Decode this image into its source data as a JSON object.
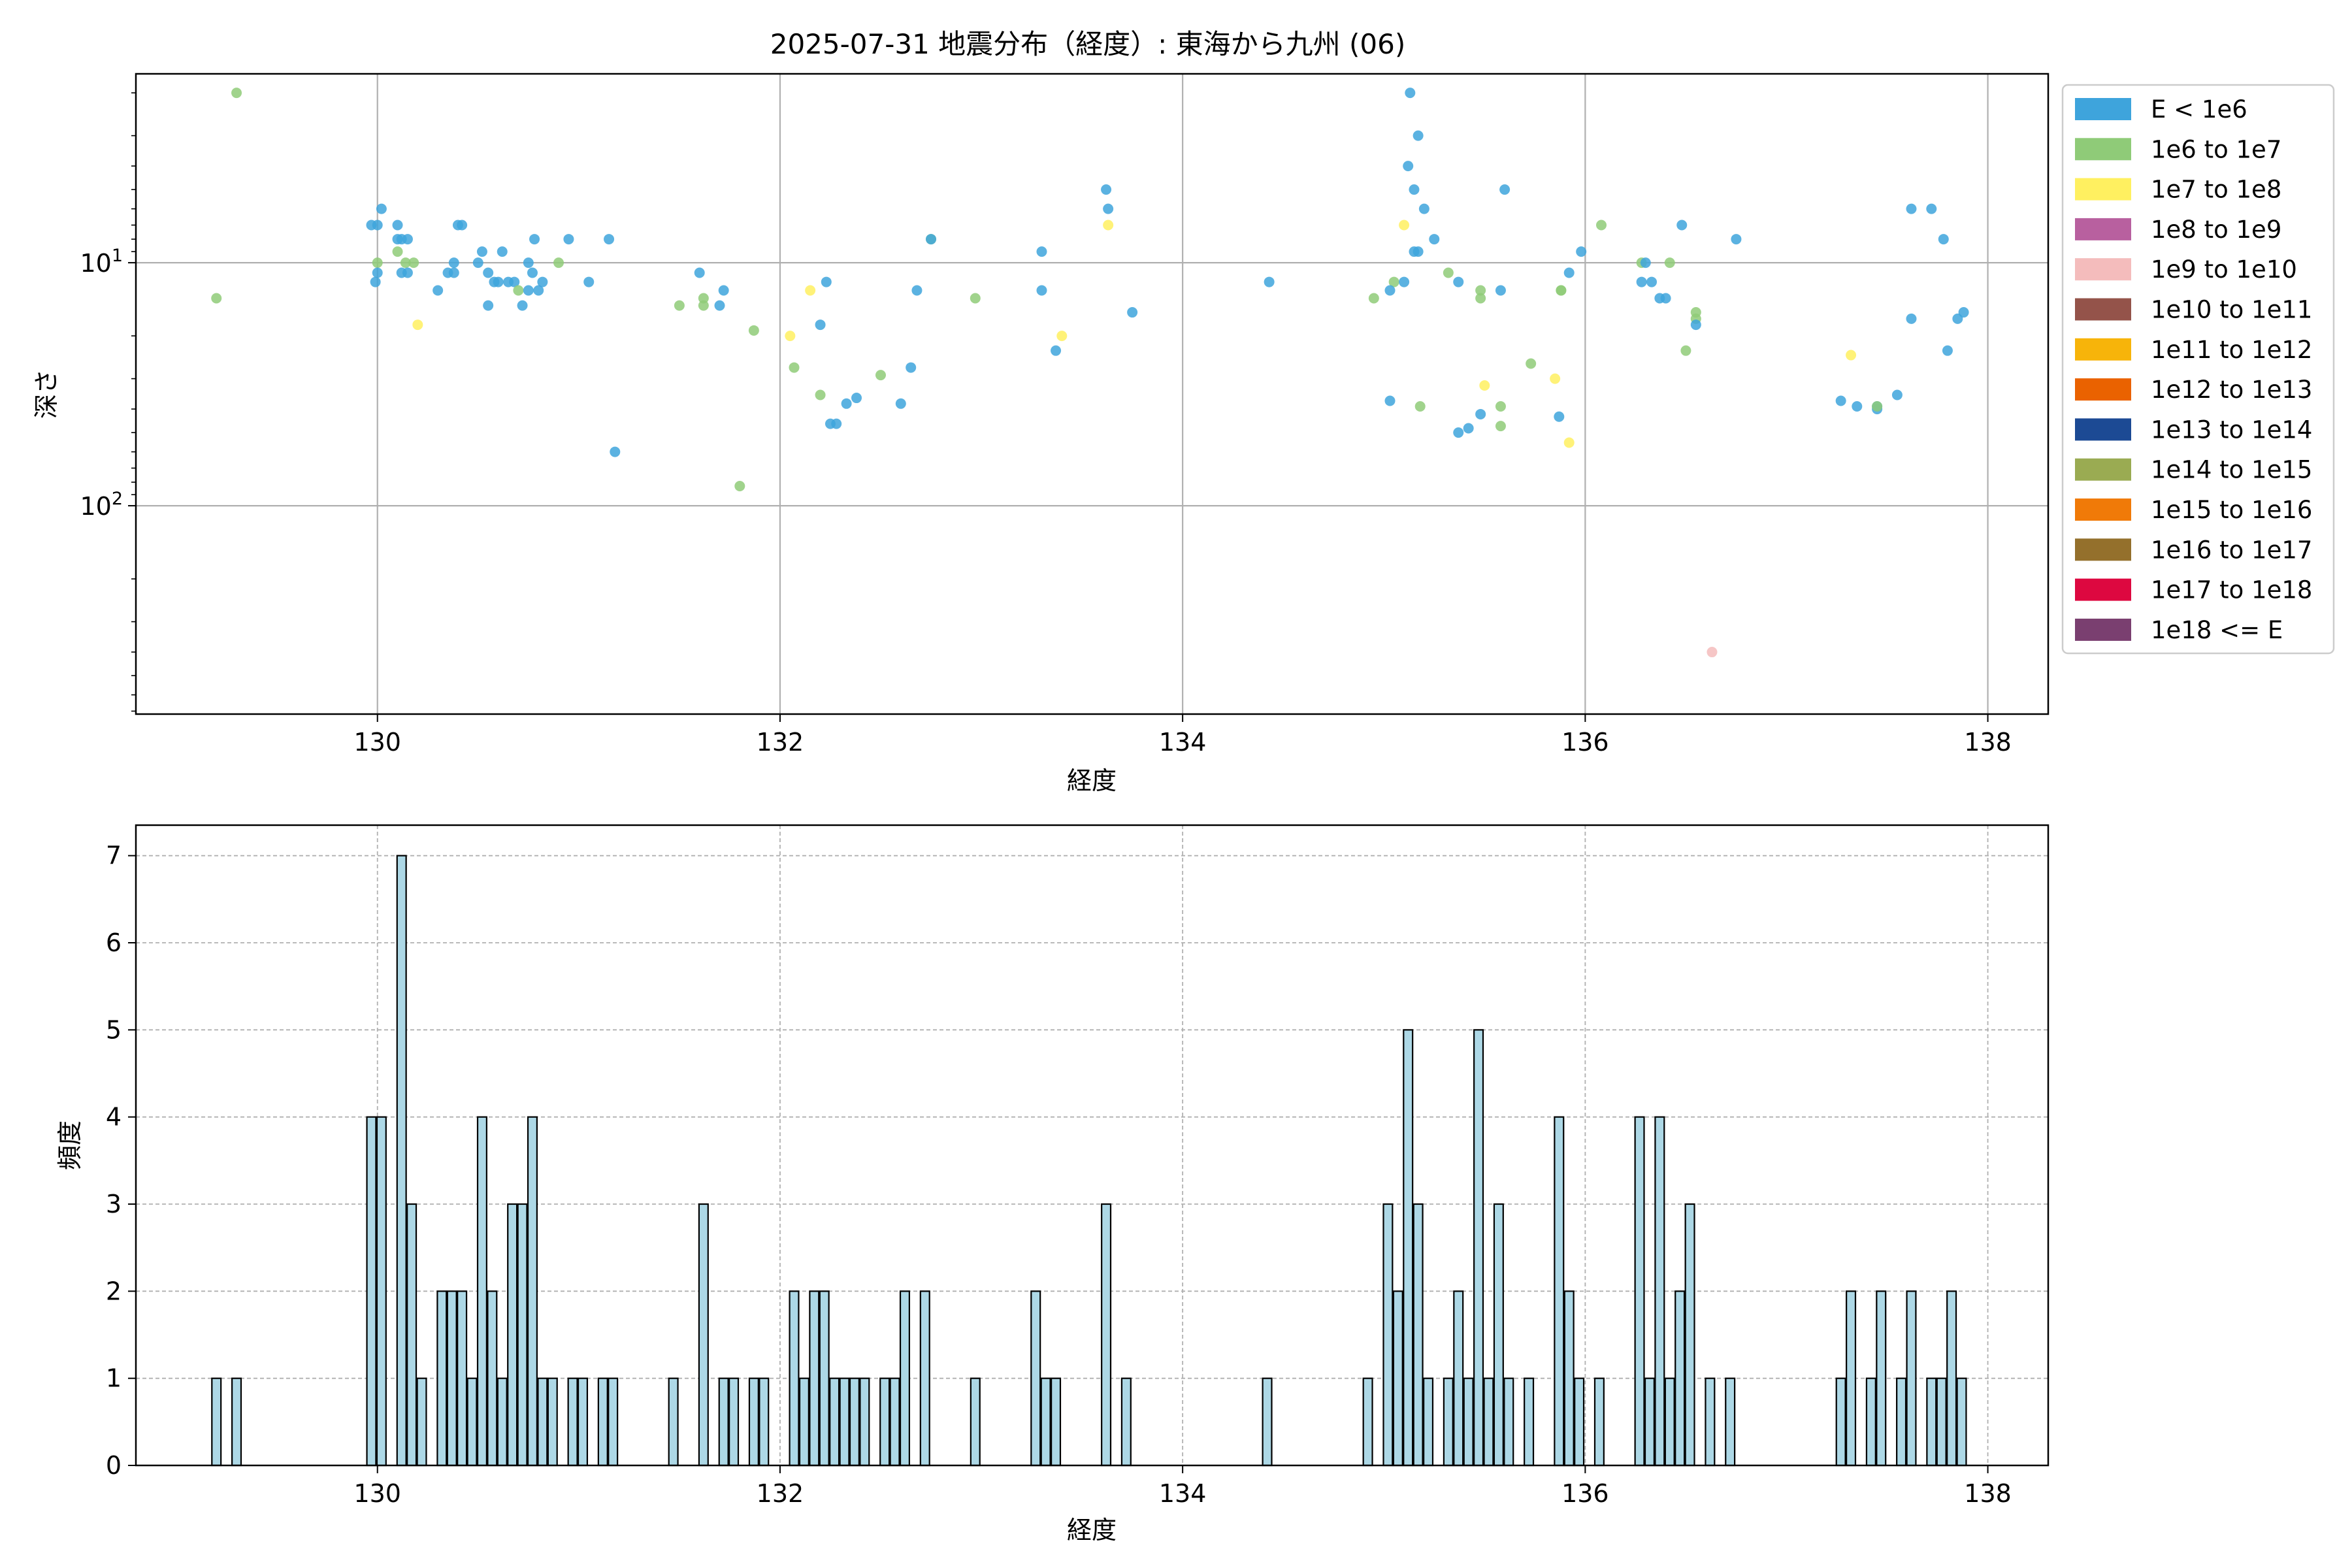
{
  "figure": {
    "title": "2025-07-31 地震分布（経度）: 東海から九州 (06)"
  },
  "chart_data": [
    {
      "type": "scatter",
      "name": "depth-vs-longitude",
      "xlabel": "経度",
      "ylabel": "深さ",
      "xlim": [
        128.8,
        138.3
      ],
      "ylim": [
        720,
        1.67
      ],
      "y_scale": "log",
      "y_inverted": true,
      "grid": true,
      "x_ticks": [
        "130",
        "132",
        "134",
        "136",
        "138"
      ],
      "y_ticks": [
        {
          "base": "10",
          "exp": "1",
          "value": 10
        },
        {
          "base": "10",
          "exp": "2",
          "value": 100
        }
      ],
      "legend": {
        "placement": "outside-right",
        "entries": [
          {
            "label": "E < 1e6",
            "color": "#3ea4dc"
          },
          {
            "label": "1e6 to 1e7",
            "color": "#8fcb78"
          },
          {
            "label": "1e7 to 1e8",
            "color": "#fff060"
          },
          {
            "label": "1e8 to 1e9",
            "color": "#b8609f"
          },
          {
            "label": "1e9 to 1e10",
            "color": "#f4bcbc"
          },
          {
            "label": "1e10 to 1e11",
            "color": "#94534a"
          },
          {
            "label": "1e11 to 1e12",
            "color": "#f7b40a"
          },
          {
            "label": "1e12 to 1e13",
            "color": "#ea6200"
          },
          {
            "label": "1e13 to 1e14",
            "color": "#1c4a94"
          },
          {
            "label": "1e14 to 1e15",
            "color": "#9aab52"
          },
          {
            "label": "1e15 to 1e16",
            "color": "#f07a08"
          },
          {
            "label": "1e16 to 1e17",
            "color": "#94702c"
          },
          {
            "label": "1e17 to 1e18",
            "color": "#dd0840"
          },
          {
            "label": "1e18 <= E",
            "color": "#7a3f70"
          }
        ]
      },
      "points": [
        {
          "x": 129.2,
          "y": 14,
          "c": 1
        },
        {
          "x": 129.3,
          "y": 2.0,
          "c": 1
        },
        {
          "x": 129.97,
          "y": 7,
          "c": 0
        },
        {
          "x": 130.0,
          "y": 7,
          "c": 0
        },
        {
          "x": 130.02,
          "y": 6,
          "c": 0
        },
        {
          "x": 130.0,
          "y": 10,
          "c": 1
        },
        {
          "x": 130.0,
          "y": 11,
          "c": 0
        },
        {
          "x": 129.99,
          "y": 12,
          "c": 0
        },
        {
          "x": 130.1,
          "y": 7,
          "c": 0
        },
        {
          "x": 130.1,
          "y": 8,
          "c": 0
        },
        {
          "x": 130.12,
          "y": 8,
          "c": 0
        },
        {
          "x": 130.15,
          "y": 8,
          "c": 0
        },
        {
          "x": 130.1,
          "y": 9,
          "c": 1
        },
        {
          "x": 130.12,
          "y": 11,
          "c": 0
        },
        {
          "x": 130.14,
          "y": 10,
          "c": 1
        },
        {
          "x": 130.18,
          "y": 10,
          "c": 1
        },
        {
          "x": 130.15,
          "y": 11,
          "c": 0
        },
        {
          "x": 130.2,
          "y": 18,
          "c": 2
        },
        {
          "x": 130.3,
          "y": 13,
          "c": 0
        },
        {
          "x": 130.35,
          "y": 11,
          "c": 0
        },
        {
          "x": 130.38,
          "y": 11,
          "c": 0
        },
        {
          "x": 130.38,
          "y": 10,
          "c": 0
        },
        {
          "x": 130.4,
          "y": 7,
          "c": 0
        },
        {
          "x": 130.42,
          "y": 7,
          "c": 0
        },
        {
          "x": 130.5,
          "y": 10,
          "c": 0
        },
        {
          "x": 130.52,
          "y": 9,
          "c": 0
        },
        {
          "x": 130.55,
          "y": 11,
          "c": 0
        },
        {
          "x": 130.55,
          "y": 15,
          "c": 0
        },
        {
          "x": 130.58,
          "y": 12,
          "c": 0
        },
        {
          "x": 130.6,
          "y": 12,
          "c": 0
        },
        {
          "x": 130.62,
          "y": 9,
          "c": 0
        },
        {
          "x": 130.65,
          "y": 12,
          "c": 0
        },
        {
          "x": 130.68,
          "y": 12,
          "c": 0
        },
        {
          "x": 130.7,
          "y": 13,
          "c": 1
        },
        {
          "x": 130.72,
          "y": 15,
          "c": 0
        },
        {
          "x": 130.75,
          "y": 10,
          "c": 0
        },
        {
          "x": 130.77,
          "y": 11,
          "c": 0
        },
        {
          "x": 130.75,
          "y": 13,
          "c": 0
        },
        {
          "x": 130.78,
          "y": 8,
          "c": 0
        },
        {
          "x": 130.8,
          "y": 13,
          "c": 0
        },
        {
          "x": 130.82,
          "y": 12,
          "c": 0
        },
        {
          "x": 130.9,
          "y": 10,
          "c": 1
        },
        {
          "x": 130.95,
          "y": 8,
          "c": 0
        },
        {
          "x": 131.05,
          "y": 12,
          "c": 0
        },
        {
          "x": 131.15,
          "y": 8,
          "c": 0
        },
        {
          "x": 131.18,
          "y": 60,
          "c": 0
        },
        {
          "x": 131.5,
          "y": 15,
          "c": 1
        },
        {
          "x": 131.6,
          "y": 11,
          "c": 0
        },
        {
          "x": 131.62,
          "y": 14,
          "c": 1
        },
        {
          "x": 131.62,
          "y": 15,
          "c": 1
        },
        {
          "x": 131.7,
          "y": 15,
          "c": 0
        },
        {
          "x": 131.72,
          "y": 13,
          "c": 0
        },
        {
          "x": 131.8,
          "y": 83,
          "c": 1
        },
        {
          "x": 131.87,
          "y": 19,
          "c": 1
        },
        {
          "x": 132.05,
          "y": 20,
          "c": 2
        },
        {
          "x": 132.07,
          "y": 27,
          "c": 1
        },
        {
          "x": 132.15,
          "y": 13,
          "c": 2
        },
        {
          "x": 132.2,
          "y": 18,
          "c": 0
        },
        {
          "x": 132.2,
          "y": 35,
          "c": 1
        },
        {
          "x": 132.23,
          "y": 12,
          "c": 0
        },
        {
          "x": 132.25,
          "y": 46,
          "c": 0
        },
        {
          "x": 132.28,
          "y": 46,
          "c": 0
        },
        {
          "x": 132.33,
          "y": 38,
          "c": 0
        },
        {
          "x": 132.38,
          "y": 36,
          "c": 0
        },
        {
          "x": 132.5,
          "y": 29,
          "c": 1
        },
        {
          "x": 132.6,
          "y": 38,
          "c": 0
        },
        {
          "x": 132.65,
          "y": 27,
          "c": 0
        },
        {
          "x": 132.68,
          "y": 13,
          "c": 0
        },
        {
          "x": 132.75,
          "y": 8,
          "c": 1
        },
        {
          "x": 132.75,
          "y": 8,
          "c": 0
        },
        {
          "x": 132.97,
          "y": 14,
          "c": 1
        },
        {
          "x": 133.3,
          "y": 9,
          "c": 0
        },
        {
          "x": 133.3,
          "y": 13,
          "c": 0
        },
        {
          "x": 133.37,
          "y": 23,
          "c": 0
        },
        {
          "x": 133.4,
          "y": 20,
          "c": 2
        },
        {
          "x": 133.62,
          "y": 5,
          "c": 0
        },
        {
          "x": 133.63,
          "y": 6,
          "c": 0
        },
        {
          "x": 133.63,
          "y": 7,
          "c": 2
        },
        {
          "x": 133.75,
          "y": 16,
          "c": 0
        },
        {
          "x": 134.43,
          "y": 12,
          "c": 0
        },
        {
          "x": 134.95,
          "y": 14,
          "c": 1
        },
        {
          "x": 135.03,
          "y": 37,
          "c": 0
        },
        {
          "x": 135.05,
          "y": 12,
          "c": 1
        },
        {
          "x": 135.03,
          "y": 13,
          "c": 0
        },
        {
          "x": 135.1,
          "y": 12,
          "c": 0
        },
        {
          "x": 135.1,
          "y": 7,
          "c": 2
        },
        {
          "x": 135.12,
          "y": 4,
          "c": 0
        },
        {
          "x": 135.15,
          "y": 5,
          "c": 0
        },
        {
          "x": 135.15,
          "y": 9,
          "c": 0
        },
        {
          "x": 135.17,
          "y": 9,
          "c": 0
        },
        {
          "x": 135.13,
          "y": 2.0,
          "c": 0
        },
        {
          "x": 135.17,
          "y": 3,
          "c": 0
        },
        {
          "x": 135.2,
          "y": 6,
          "c": 0
        },
        {
          "x": 135.25,
          "y": 8,
          "c": 0
        },
        {
          "x": 135.18,
          "y": 39,
          "c": 1
        },
        {
          "x": 135.32,
          "y": 11,
          "c": 1
        },
        {
          "x": 135.37,
          "y": 12,
          "c": 0
        },
        {
          "x": 135.37,
          "y": 50,
          "c": 0
        },
        {
          "x": 135.42,
          "y": 48,
          "c": 0
        },
        {
          "x": 135.48,
          "y": 13,
          "c": 1
        },
        {
          "x": 135.48,
          "y": 14,
          "c": 1
        },
        {
          "x": 135.48,
          "y": 42,
          "c": 0
        },
        {
          "x": 135.5,
          "y": 32,
          "c": 2
        },
        {
          "x": 135.58,
          "y": 13,
          "c": 0
        },
        {
          "x": 135.6,
          "y": 5,
          "c": 0
        },
        {
          "x": 135.58,
          "y": 39,
          "c": 1
        },
        {
          "x": 135.58,
          "y": 47,
          "c": 1
        },
        {
          "x": 135.73,
          "y": 26,
          "c": 1
        },
        {
          "x": 135.85,
          "y": 30,
          "c": 2
        },
        {
          "x": 135.87,
          "y": 43,
          "c": 0
        },
        {
          "x": 135.88,
          "y": 13,
          "c": 1
        },
        {
          "x": 135.88,
          "y": 13,
          "c": 1
        },
        {
          "x": 135.92,
          "y": 11,
          "c": 0
        },
        {
          "x": 135.92,
          "y": 55,
          "c": 2
        },
        {
          "x": 135.98,
          "y": 9,
          "c": 0
        },
        {
          "x": 136.08,
          "y": 7,
          "c": 1
        },
        {
          "x": 136.28,
          "y": 10,
          "c": 1
        },
        {
          "x": 136.28,
          "y": 12,
          "c": 0
        },
        {
          "x": 136.3,
          "y": 10,
          "c": 0
        },
        {
          "x": 136.33,
          "y": 12,
          "c": 0
        },
        {
          "x": 136.37,
          "y": 14,
          "c": 0
        },
        {
          "x": 136.4,
          "y": 14,
          "c": 0
        },
        {
          "x": 136.42,
          "y": 10,
          "c": 1
        },
        {
          "x": 136.48,
          "y": 7,
          "c": 0
        },
        {
          "x": 136.5,
          "y": 23,
          "c": 1
        },
        {
          "x": 136.55,
          "y": 16,
          "c": 1
        },
        {
          "x": 136.55,
          "y": 17,
          "c": 1
        },
        {
          "x": 136.55,
          "y": 18,
          "c": 0
        },
        {
          "x": 136.63,
          "y": 400,
          "c": 4
        },
        {
          "x": 136.75,
          "y": 8,
          "c": 0
        },
        {
          "x": 137.27,
          "y": 37,
          "c": 0
        },
        {
          "x": 137.32,
          "y": 24,
          "c": 2
        },
        {
          "x": 137.35,
          "y": 39,
          "c": 0
        },
        {
          "x": 137.45,
          "y": 39,
          "c": 0
        },
        {
          "x": 137.45,
          "y": 40,
          "c": 0
        },
        {
          "x": 137.45,
          "y": 39,
          "c": 1
        },
        {
          "x": 137.55,
          "y": 35,
          "c": 0
        },
        {
          "x": 137.62,
          "y": 6,
          "c": 0
        },
        {
          "x": 137.62,
          "y": 17,
          "c": 0
        },
        {
          "x": 137.72,
          "y": 6,
          "c": 0
        },
        {
          "x": 137.78,
          "y": 8,
          "c": 0
        },
        {
          "x": 137.8,
          "y": 23,
          "c": 0
        },
        {
          "x": 137.85,
          "y": 17,
          "c": 0
        },
        {
          "x": 137.88,
          "y": 16,
          "c": 0
        }
      ]
    },
    {
      "type": "bar",
      "name": "longitude-histogram",
      "xlabel": "経度",
      "ylabel": "頻度",
      "xlim": [
        128.8,
        138.3
      ],
      "ylim": [
        0,
        7.35
      ],
      "grid": true,
      "bin_width": 0.045,
      "x_ticks": [
        "130",
        "132",
        "134",
        "136",
        "138"
      ],
      "y_ticks": [
        "0",
        "1",
        "2",
        "3",
        "4",
        "5",
        "6",
        "7"
      ],
      "bar_color": "#add8e6",
      "bins": [
        {
          "x": 129.2,
          "n": 1
        },
        {
          "x": 129.3,
          "n": 1
        },
        {
          "x": 129.97,
          "n": 4
        },
        {
          "x": 130.02,
          "n": 4
        },
        {
          "x": 130.12,
          "n": 7
        },
        {
          "x": 130.17,
          "n": 3
        },
        {
          "x": 130.22,
          "n": 1
        },
        {
          "x": 130.32,
          "n": 2
        },
        {
          "x": 130.37,
          "n": 2
        },
        {
          "x": 130.42,
          "n": 2
        },
        {
          "x": 130.47,
          "n": 1
        },
        {
          "x": 130.52,
          "n": 4
        },
        {
          "x": 130.57,
          "n": 2
        },
        {
          "x": 130.62,
          "n": 1
        },
        {
          "x": 130.67,
          "n": 3
        },
        {
          "x": 130.72,
          "n": 3
        },
        {
          "x": 130.77,
          "n": 4
        },
        {
          "x": 130.82,
          "n": 1
        },
        {
          "x": 130.87,
          "n": 1
        },
        {
          "x": 130.97,
          "n": 1
        },
        {
          "x": 131.02,
          "n": 1
        },
        {
          "x": 131.12,
          "n": 1
        },
        {
          "x": 131.17,
          "n": 1
        },
        {
          "x": 131.47,
          "n": 1
        },
        {
          "x": 131.62,
          "n": 3
        },
        {
          "x": 131.72,
          "n": 1
        },
        {
          "x": 131.77,
          "n": 1
        },
        {
          "x": 131.87,
          "n": 1
        },
        {
          "x": 131.92,
          "n": 1
        },
        {
          "x": 132.07,
          "n": 2
        },
        {
          "x": 132.12,
          "n": 1
        },
        {
          "x": 132.17,
          "n": 2
        },
        {
          "x": 132.22,
          "n": 2
        },
        {
          "x": 132.27,
          "n": 1
        },
        {
          "x": 132.32,
          "n": 1
        },
        {
          "x": 132.37,
          "n": 1
        },
        {
          "x": 132.42,
          "n": 1
        },
        {
          "x": 132.52,
          "n": 1
        },
        {
          "x": 132.57,
          "n": 1
        },
        {
          "x": 132.62,
          "n": 2
        },
        {
          "x": 132.72,
          "n": 2
        },
        {
          "x": 132.97,
          "n": 1
        },
        {
          "x": 133.27,
          "n": 2
        },
        {
          "x": 133.32,
          "n": 1
        },
        {
          "x": 133.37,
          "n": 1
        },
        {
          "x": 133.62,
          "n": 3
        },
        {
          "x": 133.72,
          "n": 1
        },
        {
          "x": 134.42,
          "n": 1
        },
        {
          "x": 134.92,
          "n": 1
        },
        {
          "x": 135.02,
          "n": 3
        },
        {
          "x": 135.07,
          "n": 2
        },
        {
          "x": 135.12,
          "n": 5
        },
        {
          "x": 135.17,
          "n": 3
        },
        {
          "x": 135.22,
          "n": 1
        },
        {
          "x": 135.32,
          "n": 1
        },
        {
          "x": 135.37,
          "n": 2
        },
        {
          "x": 135.42,
          "n": 1
        },
        {
          "x": 135.47,
          "n": 5
        },
        {
          "x": 135.52,
          "n": 1
        },
        {
          "x": 135.57,
          "n": 3
        },
        {
          "x": 135.62,
          "n": 1
        },
        {
          "x": 135.72,
          "n": 1
        },
        {
          "x": 135.87,
          "n": 4
        },
        {
          "x": 135.92,
          "n": 2
        },
        {
          "x": 135.97,
          "n": 1
        },
        {
          "x": 136.07,
          "n": 1
        },
        {
          "x": 136.27,
          "n": 4
        },
        {
          "x": 136.32,
          "n": 1
        },
        {
          "x": 136.37,
          "n": 4
        },
        {
          "x": 136.42,
          "n": 1
        },
        {
          "x": 136.47,
          "n": 2
        },
        {
          "x": 136.52,
          "n": 3
        },
        {
          "x": 136.62,
          "n": 1
        },
        {
          "x": 136.72,
          "n": 1
        },
        {
          "x": 137.27,
          "n": 1
        },
        {
          "x": 137.32,
          "n": 2
        },
        {
          "x": 137.42,
          "n": 1
        },
        {
          "x": 137.47,
          "n": 2
        },
        {
          "x": 137.57,
          "n": 1
        },
        {
          "x": 137.62,
          "n": 2
        },
        {
          "x": 137.72,
          "n": 1
        },
        {
          "x": 137.77,
          "n": 1
        },
        {
          "x": 137.82,
          "n": 2
        },
        {
          "x": 137.87,
          "n": 1
        }
      ]
    }
  ]
}
